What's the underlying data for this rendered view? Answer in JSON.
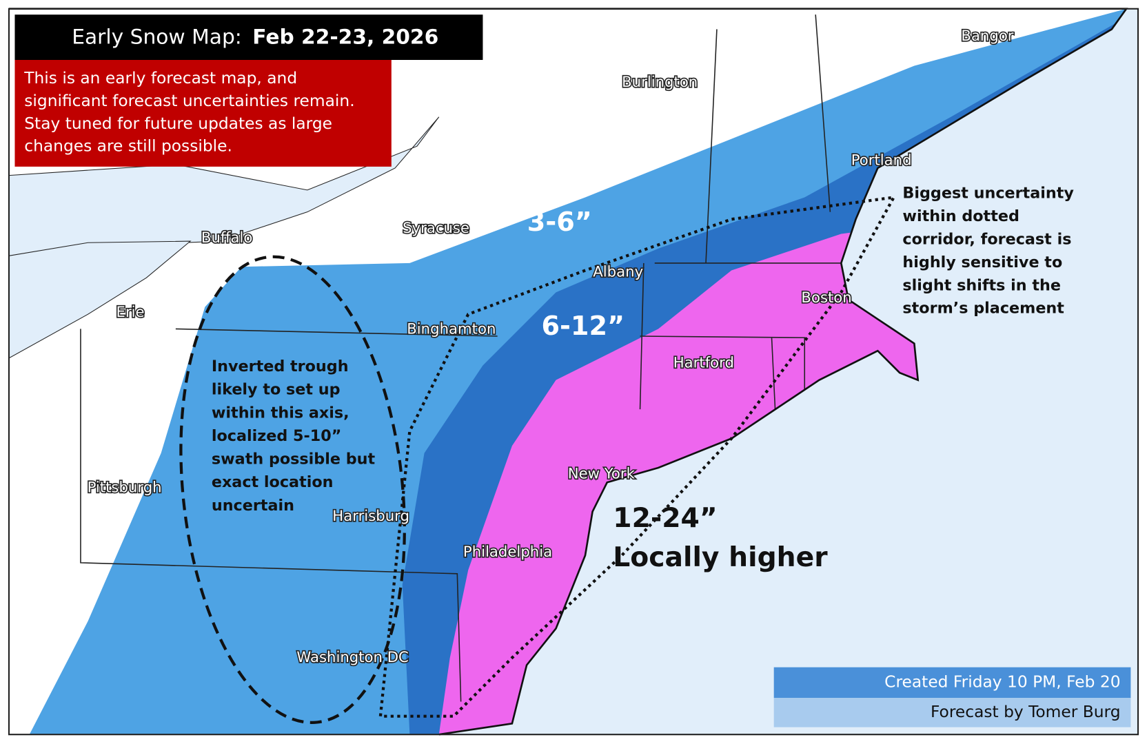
{
  "header": {
    "title_prefix": "Early Snow Map:",
    "title_date": "Feb 22-23, 2026"
  },
  "warning": {
    "lines": [
      "This is an early forecast map, and",
      "significant forecast uncertainties remain.",
      "Stay tuned for future updates as large",
      "changes are still possible."
    ]
  },
  "cities": [
    "Bangor",
    "Burlington",
    "Portland",
    "Syracuse",
    "Buffalo",
    "Albany",
    "Boston",
    "Erie",
    "Binghamton",
    "Hartford",
    "Pittsburgh",
    "New York",
    "Harrisburg",
    "Philadelphia",
    "Washington DC"
  ],
  "zones": {
    "light": "3-6”",
    "medium": "6-12”",
    "heavy": "12-24”",
    "heavy_note": "Locally higher"
  },
  "annotations": {
    "trough": [
      "Inverted trough",
      "likely to set up",
      "within this axis,",
      "localized 5-10”",
      "swath possible but",
      "exact location",
      "uncertain"
    ],
    "corridor": [
      "Biggest uncertainty",
      "within dotted",
      "corridor, forecast is",
      "highly sensitive to",
      "slight shifts in the",
      "storm’s placement"
    ]
  },
  "footer": {
    "created": "Created Friday 10 PM, Feb 20",
    "author": "Forecast by Tomer Burg"
  }
}
